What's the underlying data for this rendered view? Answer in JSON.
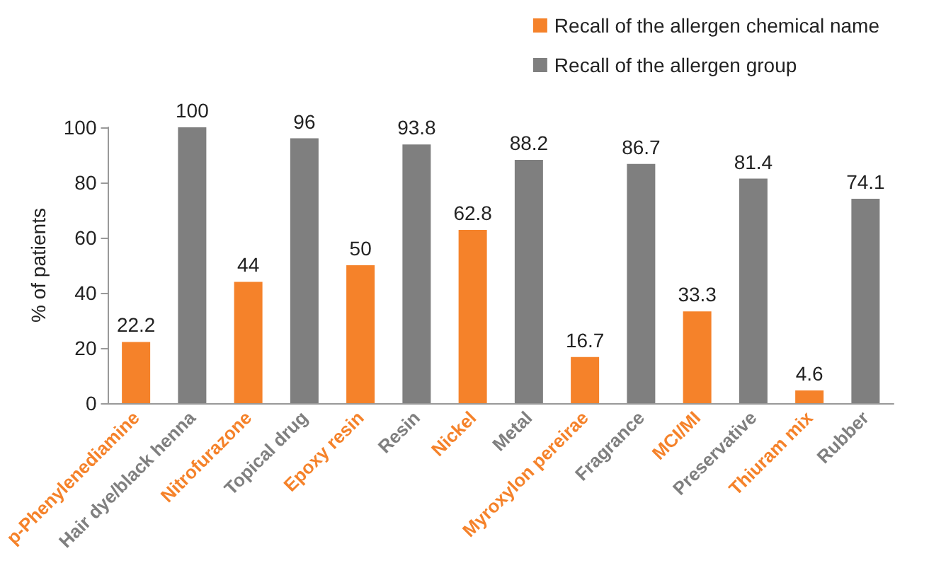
{
  "chart_data": {
    "type": "bar",
    "ylabel": "% of patients",
    "categories": [
      "p-Phenylenediamine",
      "Hair dye/black henna",
      "Nitrofurazone",
      "Topical drug",
      "Epoxy resin",
      "Resin",
      "Nickel",
      "Metal",
      "Myroxylon pereirae",
      "Fragrance",
      "MCI/MI",
      "Preservative",
      "Thiuram mix",
      "Rubber"
    ],
    "series": [
      {
        "name": "Recall of the allergen chemical name",
        "color": "#f5822a",
        "values": [
          22.2,
          null,
          44,
          null,
          50,
          null,
          62.8,
          null,
          16.7,
          null,
          33.3,
          null,
          4.6,
          null
        ]
      },
      {
        "name": "Recall of the allergen group",
        "color": "#7f7f7f",
        "values": [
          null,
          100,
          null,
          96,
          null,
          93.8,
          null,
          88.2,
          null,
          86.7,
          null,
          81.4,
          null,
          74.1
        ]
      }
    ],
    "ylim": [
      0,
      100
    ],
    "yticks": [
      0,
      20,
      40,
      60,
      80,
      100
    ],
    "grid": false,
    "legend": "top right",
    "data_labels": true
  }
}
